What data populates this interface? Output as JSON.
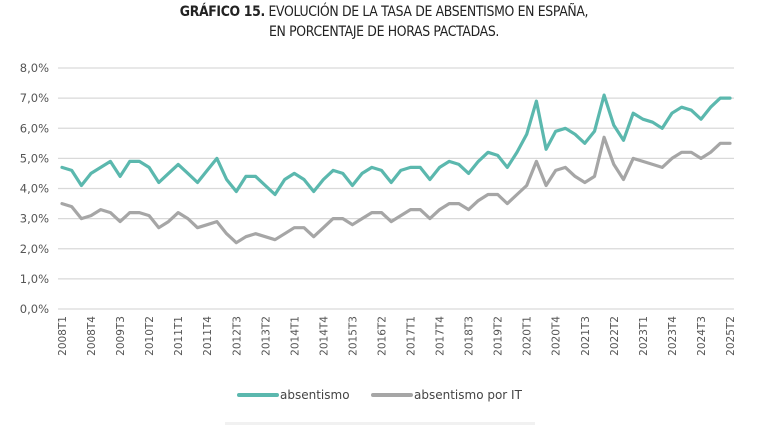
{
  "title": {
    "bold": "GRÁFICO 15.",
    "line1": " EVOLUCIÓN DE LA TASA DE ABSENTISMO EN ESPAÑA,",
    "line2": "EN PORCENTAJE DE HORAS PACTADAS."
  },
  "colors": {
    "absentismo": "#5bb8ae",
    "it": "#a6a6a6",
    "grid": "#d9d9d9"
  },
  "chart_data": {
    "type": "line",
    "title": "GRÁFICO 15. EVOLUCIÓN DE LA TASA DE ABSENTISMO EN ESPAÑA, EN PORCENTAJE DE HORAS PACTADAS.",
    "xlabel": "",
    "ylabel": "",
    "ylim": [
      0,
      8
    ],
    "yticks": [
      "0,0%",
      "1,0%",
      "2,0%",
      "3,0%",
      "4,0%",
      "5,0%",
      "6,0%",
      "7,0%",
      "8,0%"
    ],
    "grid": true,
    "legend_position": "bottom",
    "x": [
      "2008T1",
      "2008T2",
      "2008T3",
      "2008T4",
      "2009T1",
      "2009T2",
      "2009T3",
      "2009T4",
      "2010T1",
      "2010T2",
      "2010T3",
      "2010T4",
      "2011T1",
      "2011T2",
      "2011T3",
      "2011T4",
      "2012T1",
      "2012T2",
      "2012T3",
      "2012T4",
      "2013T1",
      "2013T2",
      "2013T3",
      "2013T4",
      "2014T1",
      "2014T2",
      "2014T3",
      "2014T4",
      "2015T1",
      "2015T2",
      "2015T3",
      "2015T4",
      "2016T1",
      "2016T2",
      "2016T3",
      "2016T4",
      "2017T1",
      "2017T2",
      "2017T3",
      "2017T4",
      "2018T1",
      "2018T2",
      "2018T3",
      "2018T4",
      "2019T1",
      "2019T2",
      "2019T3",
      "2019T4",
      "2020T1",
      "2020T2",
      "2020T3",
      "2020T4",
      "2021T1",
      "2021T2",
      "2021T3",
      "2021T4",
      "2022T1",
      "2022T2",
      "2022T3",
      "2022T4",
      "2023T1",
      "2023T2",
      "2023T3",
      "2023T4",
      "2024T1",
      "2024T2",
      "2024T3",
      "2024T4",
      "2025T1",
      "2025T2"
    ],
    "xtick_labels": [
      "2008T1",
      "2008T4",
      "2009T3",
      "2010T2",
      "2011T1",
      "2011T4",
      "2012T3",
      "2013T2",
      "2014T1",
      "2014T4",
      "2015T3",
      "2016T2",
      "2017T1",
      "2017T4",
      "2018T3",
      "2019T2",
      "2020T1",
      "2020T4",
      "2021T3",
      "2022T2",
      "2023T1",
      "2023T4",
      "2024T3",
      "2025T2"
    ],
    "series": [
      {
        "name": "absentismo",
        "values": [
          4.7,
          4.6,
          4.1,
          4.5,
          4.7,
          4.9,
          4.4,
          4.9,
          4.9,
          4.7,
          4.2,
          4.5,
          4.8,
          4.5,
          4.2,
          4.6,
          5.0,
          4.3,
          3.9,
          4.4,
          4.4,
          4.1,
          3.8,
          4.3,
          4.5,
          4.3,
          3.9,
          4.3,
          4.6,
          4.5,
          4.1,
          4.5,
          4.7,
          4.6,
          4.2,
          4.6,
          4.7,
          4.7,
          4.3,
          4.7,
          4.9,
          4.8,
          4.5,
          4.9,
          5.2,
          5.1,
          4.7,
          5.2,
          5.8,
          6.9,
          5.3,
          5.9,
          6.0,
          5.8,
          5.5,
          5.9,
          7.1,
          6.1,
          5.6,
          6.5,
          6.3,
          6.2,
          6.0,
          6.5,
          6.7,
          6.6,
          6.3,
          6.7,
          7.0,
          7.0
        ]
      },
      {
        "name": "absentismo por IT",
        "values": [
          3.5,
          3.4,
          3.0,
          3.1,
          3.3,
          3.2,
          2.9,
          3.2,
          3.2,
          3.1,
          2.7,
          2.9,
          3.2,
          3.0,
          2.7,
          2.8,
          2.9,
          2.5,
          2.2,
          2.4,
          2.5,
          2.4,
          2.3,
          2.5,
          2.7,
          2.7,
          2.4,
          2.7,
          3.0,
          3.0,
          2.8,
          3.0,
          3.2,
          3.2,
          2.9,
          3.1,
          3.3,
          3.3,
          3.0,
          3.3,
          3.5,
          3.5,
          3.3,
          3.6,
          3.8,
          3.8,
          3.5,
          3.8,
          4.1,
          4.9,
          4.1,
          4.6,
          4.7,
          4.4,
          4.2,
          4.4,
          5.7,
          4.8,
          4.3,
          5.0,
          4.9,
          4.8,
          4.7,
          5.0,
          5.2,
          5.2,
          5.0,
          5.2,
          5.5,
          5.5
        ]
      }
    ]
  },
  "legend": {
    "items": [
      "absentismo",
      "absentismo por IT"
    ]
  }
}
